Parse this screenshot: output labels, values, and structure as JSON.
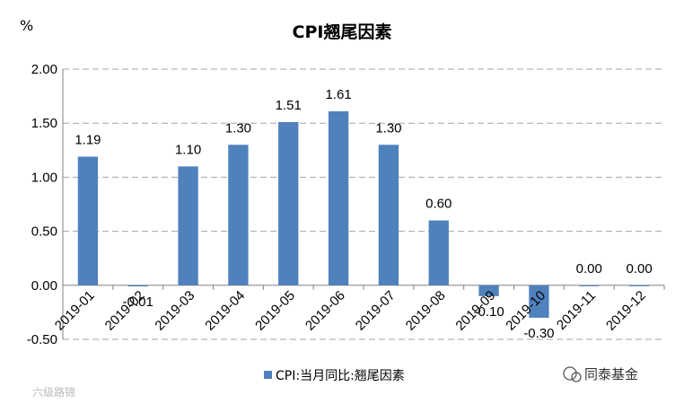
{
  "chart_data": {
    "type": "bar",
    "title": "CPI翘尾因素",
    "ylabel": "%",
    "ylim": [
      -0.5,
      2.0
    ],
    "yticks": [
      "2.00",
      "1.50",
      "1.00",
      "0.50",
      "0.00",
      "-0.50"
    ],
    "grid": true,
    "legend_position": "bottom",
    "categories": [
      "2019-01",
      "2019-02",
      "2019-03",
      "2019-04",
      "2019-05",
      "2019-06",
      "2019-07",
      "2019-08",
      "2019-09",
      "2019-10",
      "2019-11",
      "2019-12"
    ],
    "series": [
      {
        "name": "CPI:当月同比:翘尾因素",
        "values": [
          1.19,
          -0.01,
          1.1,
          1.3,
          1.51,
          1.61,
          1.3,
          0.6,
          -0.1,
          -0.3,
          0.0,
          0.0
        ],
        "labels": [
          "1.19",
          "-0.01",
          "1.10",
          "1.30",
          "1.51",
          "1.61",
          "1.30",
          "0.60",
          "-0.10",
          "-0.30",
          "0.00",
          "0.00"
        ],
        "color": "#4f81bd"
      }
    ]
  },
  "watermark": {
    "brand": "同泰基金",
    "faint": "六级路锦"
  },
  "colors": {
    "grid": "#a6a6a6",
    "axis": "#808080",
    "bar": "#4f81bd"
  }
}
